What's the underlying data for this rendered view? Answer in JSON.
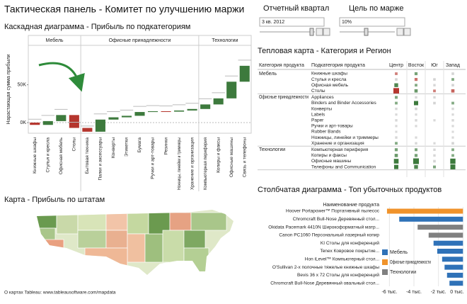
{
  "title": "Тактическая панель - Комитет по улучшению маржи",
  "controls": [
    {
      "label": "Отчетный квартал",
      "value": "3 кв. 2012"
    },
    {
      "label": "Цель по марже",
      "value": "10%"
    }
  ],
  "map": {
    "title": "Карта - Прибыль по штатам",
    "credit": "О картах Tableau: www.tableausoftware.com/mapdata"
  },
  "chart_data": [
    {
      "type": "waterfall",
      "title": "Каскадная диаграмма - Прибыль по подкатегориям",
      "y_label": "Нарастающая сумма прибыли",
      "colors": {
        "positive": "#3d7a3d",
        "negative": "#b5362e"
      },
      "ylim": [
        -14,
        102
      ],
      "yticks": [
        {
          "value": 0,
          "label": "0K"
        },
        {
          "value": 50,
          "label": "50K"
        }
      ],
      "groups": [
        {
          "name": "Мебель",
          "categories": [
            "Книжные шкафы",
            "Стулья и кресла",
            "Офисная мебель",
            "Столы"
          ],
          "values": [
            -3,
            5,
            8,
            -17
          ]
        },
        {
          "name": "Офисные принадлежности",
          "categories": [
            "Бытовая техника",
            "Папки и аксессуары",
            "Конверты",
            "Этикетки",
            "Бумага",
            "Ручки и арт-товары",
            "Резинки",
            "Ножницы, линейки и триммеры",
            "Хранение и организация"
          ],
          "values": [
            -5,
            16,
            3,
            2,
            5,
            1,
            -0.5,
            1.5,
            2
          ]
        },
        {
          "name": "Технологии",
          "categories": [
            "Компьютерная периферия",
            "Копиры и факсы",
            "Офисные машины",
            "Связь и телефоны"
          ],
          "values": [
            6,
            8,
            22,
            21
          ]
        }
      ]
    },
    {
      "type": "heatmap",
      "title": "Тепловая карта - Категория и Регион",
      "row_headers": [
        "Категория продукта",
        "Подкатегория продукта"
      ],
      "columns": [
        "Центр",
        "Восток",
        "Юг",
        "Запад"
      ],
      "colors": {
        "positive": "#3d7a3d",
        "negative": "#b5362e",
        "neutral": "#b8b8b8"
      },
      "groups": [
        {
          "name": "Мебель",
          "rows": [
            {
              "name": "Книжные шкафы",
              "values": [
                -0.4,
                0.6,
                null,
                -0.3
              ]
            },
            {
              "name": "Стулья и кресла",
              "values": [
                0.3,
                -0.6,
                0.3,
                0.4
              ]
            },
            {
              "name": "Офисная мебель",
              "values": [
                1.2,
                0.4,
                0.2,
                0.3
              ]
            },
            {
              "name": "Столы",
              "values": [
                -2.5,
                0.8,
                -0.4,
                -0.8
              ]
            }
          ]
        },
        {
          "name": "Офисные принадлежности",
          "rows": [
            {
              "name": "Appliances",
              "values": [
                0.5,
                0.2,
                0.2,
                null
              ]
            },
            {
              "name": "Binders and Binder Accessories",
              "values": [
                0.4,
                1.5,
                0.3,
                0.4
              ]
            },
            {
              "name": "Конверты",
              "values": [
                0.2,
                0.3,
                null,
                0.2
              ]
            },
            {
              "name": "Labels",
              "values": [
                0.1,
                0.1,
                null,
                0.1
              ]
            },
            {
              "name": "Paper",
              "values": [
                0.2,
                0.2,
                0.1,
                0.2
              ]
            },
            {
              "name": "Ручки и арт-товары",
              "values": [
                0.1,
                0.1,
                null,
                0.1
              ]
            },
            {
              "name": "Rubber Bands",
              "values": [
                0.05,
                null,
                null,
                0.05
              ]
            },
            {
              "name": "Ножницы, линейки и триммеры",
              "values": [
                0.2,
                0.1,
                null,
                0.1
              ]
            },
            {
              "name": "Хранение и организация",
              "values": [
                0.4,
                0.2,
                0.1,
                0.3
              ]
            }
          ]
        },
        {
          "name": "Технологии",
          "rows": [
            {
              "name": "Компьютерная периферия",
              "values": [
                0.6,
                0.5,
                0.2,
                0.4
              ]
            },
            {
              "name": "Копиры и факсы",
              "values": [
                0.8,
                0.6,
                0.2,
                0.4
              ]
            },
            {
              "name": "Офисные машины",
              "values": [
                1.8,
                2.5,
                0.3,
                2.2
              ]
            },
            {
              "name": "Телефоны and Communication",
              "values": [
                1.5,
                1.2,
                0.5,
                2.0
              ]
            }
          ]
        }
      ]
    },
    {
      "type": "barh",
      "title": "Столбчатая диаграмма - Топ убыточных продуктов",
      "category_header": "Наименование продукта",
      "categories": [
        "Hoover Portapower™ Портативный пылесос",
        "Chromcraft Bull-Nose Деревянный стол...",
        "Okidata Pacemark 4410N Широкоформатный матр...",
        "Canon PC1060 Персональный лазерный копир",
        "KI Столы для конференций",
        "Tenex Ковровое покрытие...",
        "Hon iLevel™ Компьютерный стол...",
        "O'Sullivan 2-х полочные тяжелые книжные шкафы",
        "Bevis 36 x 72 Столы для конференций",
        "Chromcraft Bull-Nose Деревянный овальный стол..."
      ],
      "series": [
        {
          "name": "Мебель",
          "color": "#2f72b8",
          "values": [
            null,
            -5.2,
            null,
            null,
            -2.4,
            -2.1,
            -1.7,
            -1.5,
            -1.3,
            -1.1
          ]
        },
        {
          "name": "Офисные принадлежности",
          "color": "#f0932b",
          "values": [
            -6.2,
            null,
            null,
            null,
            null,
            null,
            null,
            null,
            null,
            null
          ]
        },
        {
          "name": "Технологии",
          "color": "#808080",
          "values": [
            null,
            null,
            -3.7,
            -2.8,
            null,
            null,
            null,
            null,
            null,
            null
          ]
        }
      ],
      "xlim": [
        -6.6,
        0.1
      ],
      "xticks": [
        {
          "value": -6,
          "label": "-6 тыс."
        },
        {
          "value": -4,
          "label": "-4 тыс."
        },
        {
          "value": -2,
          "label": "-2 тыс."
        },
        {
          "value": 0,
          "label": "0 тыс."
        }
      ]
    }
  ]
}
